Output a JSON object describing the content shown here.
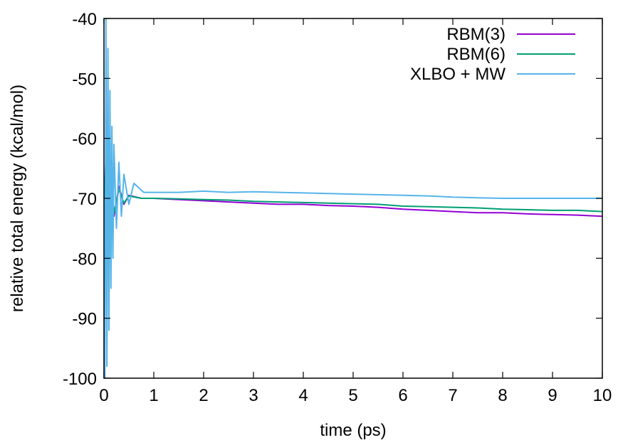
{
  "chart_data": {
    "type": "line",
    "title": "",
    "xlabel": "time (ps)",
    "ylabel": "relative total energy (kcal/mol)",
    "xlim": [
      0,
      10
    ],
    "ylim": [
      -100,
      -40
    ],
    "x_ticks": [
      0,
      1,
      2,
      3,
      4,
      5,
      6,
      7,
      8,
      9,
      10
    ],
    "x_tick_labels": [
      "0",
      "1",
      "2",
      "3",
      "4",
      "5",
      "6",
      "7",
      "8",
      "9",
      "10"
    ],
    "y_ticks": [
      -100,
      -90,
      -80,
      -70,
      -60,
      -50,
      -40
    ],
    "y_tick_labels": [
      "-100",
      "-90",
      "-80",
      "-70",
      "-60",
      "-50",
      "-40"
    ],
    "grid": false,
    "legend_position": "top-right",
    "series": [
      {
        "name": "RBM(3)",
        "color": "#9400d3",
        "x": [
          0,
          0.05,
          0.1,
          0.15,
          0.2,
          0.3,
          0.4,
          0.5,
          0.75,
          1,
          1.5,
          2,
          2.5,
          3,
          3.5,
          4,
          4.5,
          5,
          5.5,
          6,
          6.5,
          7,
          7.5,
          8,
          8.5,
          9,
          9.5,
          10
        ],
        "y": [
          -70,
          -62,
          -76,
          -66,
          -73,
          -68,
          -71,
          -69.5,
          -70,
          -70,
          -70.2,
          -70.4,
          -70.6,
          -70.8,
          -71,
          -71,
          -71.2,
          -71.3,
          -71.5,
          -71.8,
          -72,
          -72.2,
          -72.4,
          -72.4,
          -72.6,
          -72.7,
          -72.8,
          -73
        ]
      },
      {
        "name": "RBM(6)",
        "color": "#009e73",
        "x": [
          0,
          0.05,
          0.1,
          0.15,
          0.2,
          0.3,
          0.4,
          0.5,
          0.75,
          1,
          1.5,
          2,
          2.5,
          3,
          3.5,
          4,
          4.5,
          5,
          5.5,
          6,
          6.5,
          7,
          7.5,
          8,
          8.5,
          9,
          9.5,
          10
        ],
        "y": [
          -70,
          -63,
          -75,
          -67,
          -72.5,
          -68.5,
          -70.8,
          -69.6,
          -70,
          -70,
          -70.1,
          -70.2,
          -70.3,
          -70.5,
          -70.6,
          -70.7,
          -70.8,
          -70.9,
          -71,
          -71.3,
          -71.4,
          -71.5,
          -71.6,
          -71.8,
          -71.9,
          -72,
          -72,
          -72.2
        ]
      },
      {
        "name": "XLBO + MW",
        "color": "#56b4e9",
        "x": [
          0,
          0.02,
          0.04,
          0.06,
          0.08,
          0.1,
          0.12,
          0.14,
          0.16,
          0.18,
          0.2,
          0.25,
          0.3,
          0.35,
          0.4,
          0.5,
          0.6,
          0.8,
          1,
          1.5,
          2,
          2.5,
          3,
          3.5,
          4,
          4.5,
          5,
          5.5,
          6,
          6.5,
          7,
          7.5,
          8,
          8.5,
          9,
          9.5,
          10
        ],
        "y": [
          -70,
          -100,
          -40,
          -98,
          -45,
          -92,
          -52,
          -85,
          -58,
          -80,
          -61,
          -75,
          -64,
          -73,
          -66,
          -71,
          -67.5,
          -69,
          -69,
          -69,
          -68.8,
          -69,
          -68.9,
          -69,
          -69.1,
          -69.2,
          -69.3,
          -69.4,
          -69.5,
          -69.6,
          -69.8,
          -69.9,
          -70,
          -70,
          -70,
          -70,
          -70
        ]
      }
    ]
  }
}
